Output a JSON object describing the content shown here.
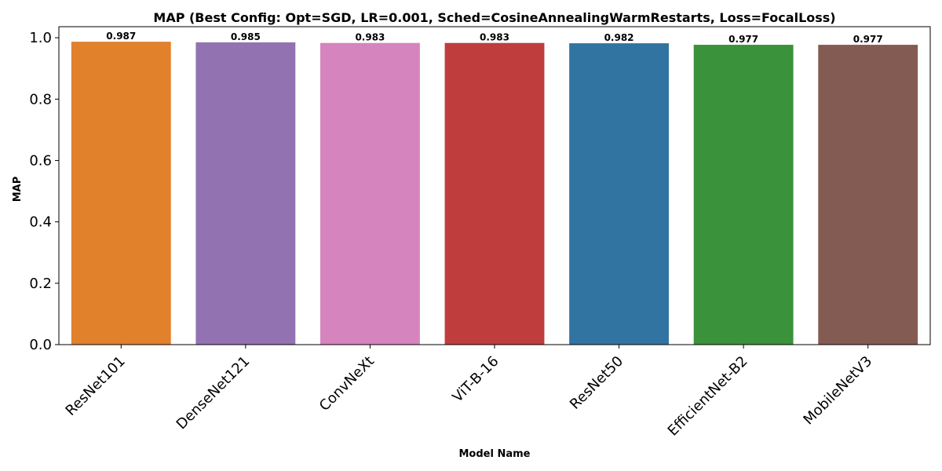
{
  "chart_data": {
    "type": "bar",
    "title": "MAP (Best Config: Opt=SGD, LR=0.001, Sched=CosineAnnealingWarmRestarts, Loss=FocalLoss)",
    "xlabel": "Model Name",
    "ylabel": "MAP",
    "categories": [
      "ResNet101",
      "DenseNet121",
      "ConvNeXt",
      "ViT-B-16",
      "ResNet50",
      "EfficientNet-B2",
      "MobileNetV3"
    ],
    "values": [
      0.987,
      0.985,
      0.983,
      0.983,
      0.982,
      0.977,
      0.977
    ],
    "value_labels": [
      "0.987",
      "0.985",
      "0.983",
      "0.983",
      "0.982",
      "0.977",
      "0.977"
    ],
    "colors": [
      "#e1812c",
      "#9372b2",
      "#d684bd",
      "#c03d3e",
      "#3274a1",
      "#3a923a",
      "#845b53"
    ],
    "ylim": [
      0,
      1.036
    ],
    "yticks": [
      0.0,
      0.2,
      0.4,
      0.6,
      0.8,
      1.0
    ],
    "ytick_labels": [
      "0.0",
      "0.2",
      "0.4",
      "0.6",
      "0.8",
      "1.0"
    ],
    "grid": false,
    "legend": "none"
  }
}
